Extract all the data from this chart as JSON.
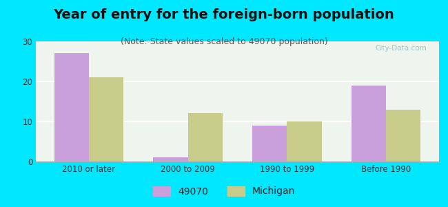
{
  "title": "Year of entry for the foreign-born population",
  "subtitle": "(Note: State values scaled to 49070 population)",
  "categories": [
    "2010 or later",
    "2000 to 2009",
    "1990 to 1999",
    "Before 1990"
  ],
  "values_49070": [
    27,
    1,
    9,
    19
  ],
  "values_michigan": [
    21,
    12,
    10,
    13
  ],
  "color_49070": "#c9a0dc",
  "color_michigan": "#c8cc8a",
  "ylim": [
    0,
    30
  ],
  "yticks": [
    0,
    10,
    20,
    30
  ],
  "bg_outer": "#00e8ff",
  "bg_inner": "#eef5ee",
  "legend_label_1": "49070",
  "legend_label_2": "Michigan",
  "bar_width": 0.35,
  "title_fontsize": 14,
  "subtitle_fontsize": 9,
  "watermark": "City-Data.com"
}
